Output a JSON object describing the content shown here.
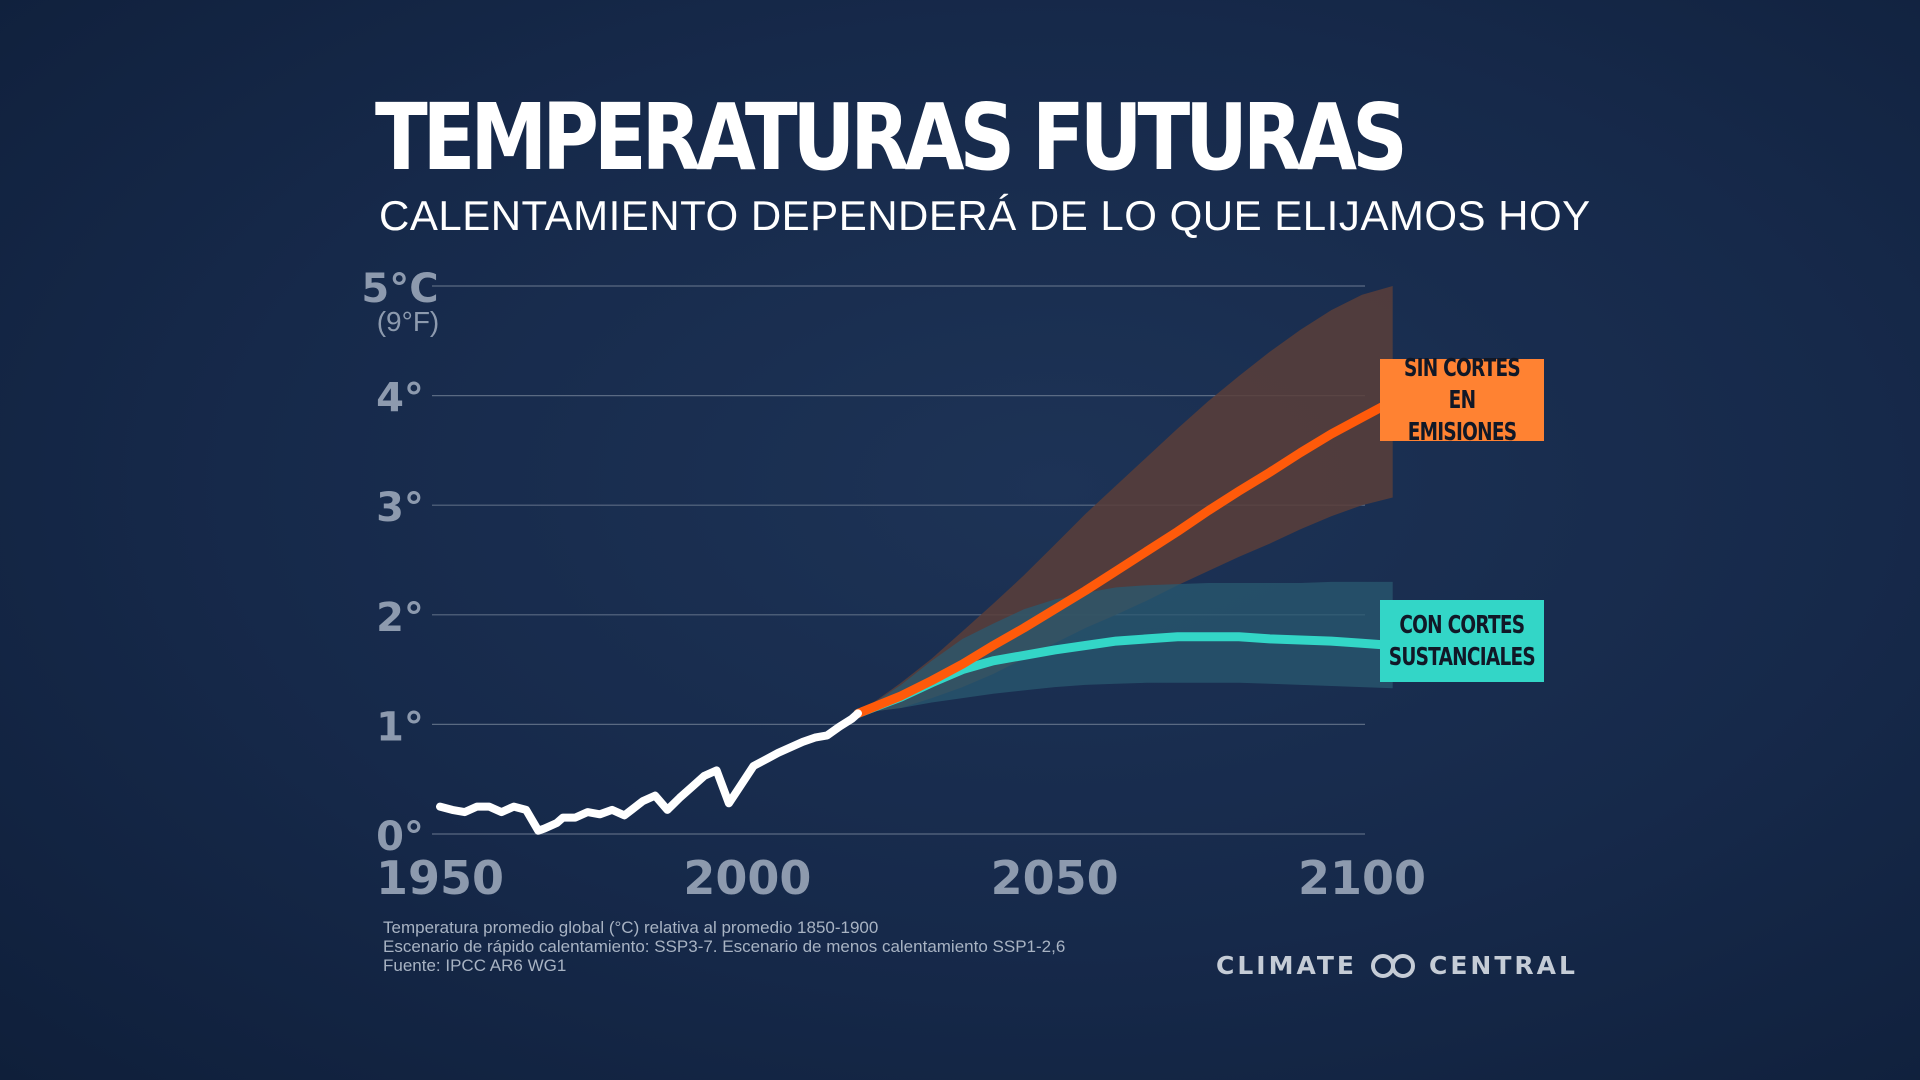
{
  "title": "TEMPERATURAS FUTURAS",
  "subtitle": "CALENTAMIENTO DEPENDERÁ DE LO QUE ELIJAMOS HOY",
  "colors": {
    "historical": "#ffffff",
    "high_emissions": "#ff5a0a",
    "high_band": "#5a3e3a",
    "low_emissions": "#33d6c7",
    "low_band": "#2a5a70",
    "gridline": "#6b7a90"
  },
  "labels": {
    "high_line1": "SIN CORTES EN",
    "high_line2": "EMISIONES",
    "low_line1": "CON CORTES",
    "low_line2": "SUSTANCIALES"
  },
  "notes": {
    "line1": "Temperatura promedio global (°C) relativa al promedio 1850-1900",
    "line2": "Escenario de rápido calentamiento: SSP3-7. Escenario de menos calentamiento SSP1-2,6",
    "line3": "Fuente: IPCC AR6 WG1"
  },
  "brand": {
    "left": "CLIMATE",
    "right": "CENTRAL"
  },
  "chart_data": {
    "type": "line",
    "xlim": [
      1950,
      2100
    ],
    "ylim": [
      0,
      5
    ],
    "x_ticks": [
      1950,
      2000,
      2050,
      2100
    ],
    "x_tick_labels": [
      "1950",
      "2000",
      "2050",
      "2100"
    ],
    "y_ticks": [
      0,
      1,
      2,
      3,
      4,
      5
    ],
    "y_tick_labels": [
      "0°",
      "1°",
      "2°",
      "3°",
      "4°",
      "5°C"
    ],
    "y_top_unit": "(9°F)",
    "grid": true,
    "series": [
      {
        "key": "historical",
        "x": [
          1950,
          1952,
          1954,
          1956,
          1958,
          1960,
          1962,
          1964,
          1966,
          1967,
          1969,
          1970,
          1972,
          1974,
          1976,
          1978,
          1980,
          1983,
          1985,
          1987,
          1989,
          1991,
          1993,
          1995,
          1997,
          1999,
          2001,
          2003,
          2005,
          2007,
          2009,
          2011,
          2013,
          2015,
          2017,
          2018
        ],
        "y": [
          0.25,
          0.22,
          0.2,
          0.25,
          0.25,
          0.2,
          0.25,
          0.22,
          0.03,
          0.05,
          0.1,
          0.15,
          0.15,
          0.2,
          0.18,
          0.22,
          0.17,
          0.3,
          0.35,
          0.22,
          0.33,
          0.43,
          0.53,
          0.58,
          0.28,
          0.45,
          0.62,
          0.68,
          0.74,
          0.79,
          0.84,
          0.88,
          0.9,
          0.98,
          1.05,
          1.1
        ]
      },
      {
        "key": "low",
        "name": "CON CORTES SUSTANCIALES",
        "x": [
          2018,
          2025,
          2030,
          2035,
          2040,
          2045,
          2050,
          2055,
          2060,
          2065,
          2070,
          2075,
          2080,
          2085,
          2090,
          2095,
          2100,
          2105
        ],
        "y": [
          1.1,
          1.25,
          1.38,
          1.5,
          1.58,
          1.63,
          1.68,
          1.72,
          1.76,
          1.78,
          1.8,
          1.8,
          1.8,
          1.78,
          1.77,
          1.76,
          1.74,
          1.72
        ],
        "band_low": [
          1.1,
          1.15,
          1.2,
          1.24,
          1.28,
          1.31,
          1.34,
          1.36,
          1.37,
          1.38,
          1.38,
          1.38,
          1.38,
          1.37,
          1.36,
          1.35,
          1.34,
          1.33
        ],
        "band_high": [
          1.1,
          1.36,
          1.58,
          1.78,
          1.92,
          2.05,
          2.14,
          2.2,
          2.25,
          2.27,
          2.28,
          2.29,
          2.29,
          2.29,
          2.29,
          2.3,
          2.3,
          2.3
        ]
      },
      {
        "key": "high",
        "name": "SIN CORTES EN EMISIONES",
        "x": [
          2018,
          2025,
          2030,
          2035,
          2040,
          2045,
          2050,
          2055,
          2060,
          2065,
          2070,
          2075,
          2080,
          2085,
          2090,
          2095,
          2100,
          2105
        ],
        "y": [
          1.1,
          1.26,
          1.4,
          1.55,
          1.72,
          1.88,
          2.05,
          2.22,
          2.4,
          2.58,
          2.76,
          2.95,
          3.13,
          3.3,
          3.48,
          3.65,
          3.8,
          3.95
        ],
        "band_low": [
          1.1,
          1.15,
          1.24,
          1.34,
          1.46,
          1.6,
          1.74,
          1.88,
          2.0,
          2.13,
          2.27,
          2.4,
          2.53,
          2.65,
          2.78,
          2.9,
          3.0,
          3.07
        ],
        "band_high": [
          1.1,
          1.38,
          1.6,
          1.85,
          2.1,
          2.36,
          2.64,
          2.92,
          3.18,
          3.44,
          3.7,
          3.95,
          4.18,
          4.4,
          4.6,
          4.78,
          4.92,
          5.0
        ]
      }
    ]
  }
}
